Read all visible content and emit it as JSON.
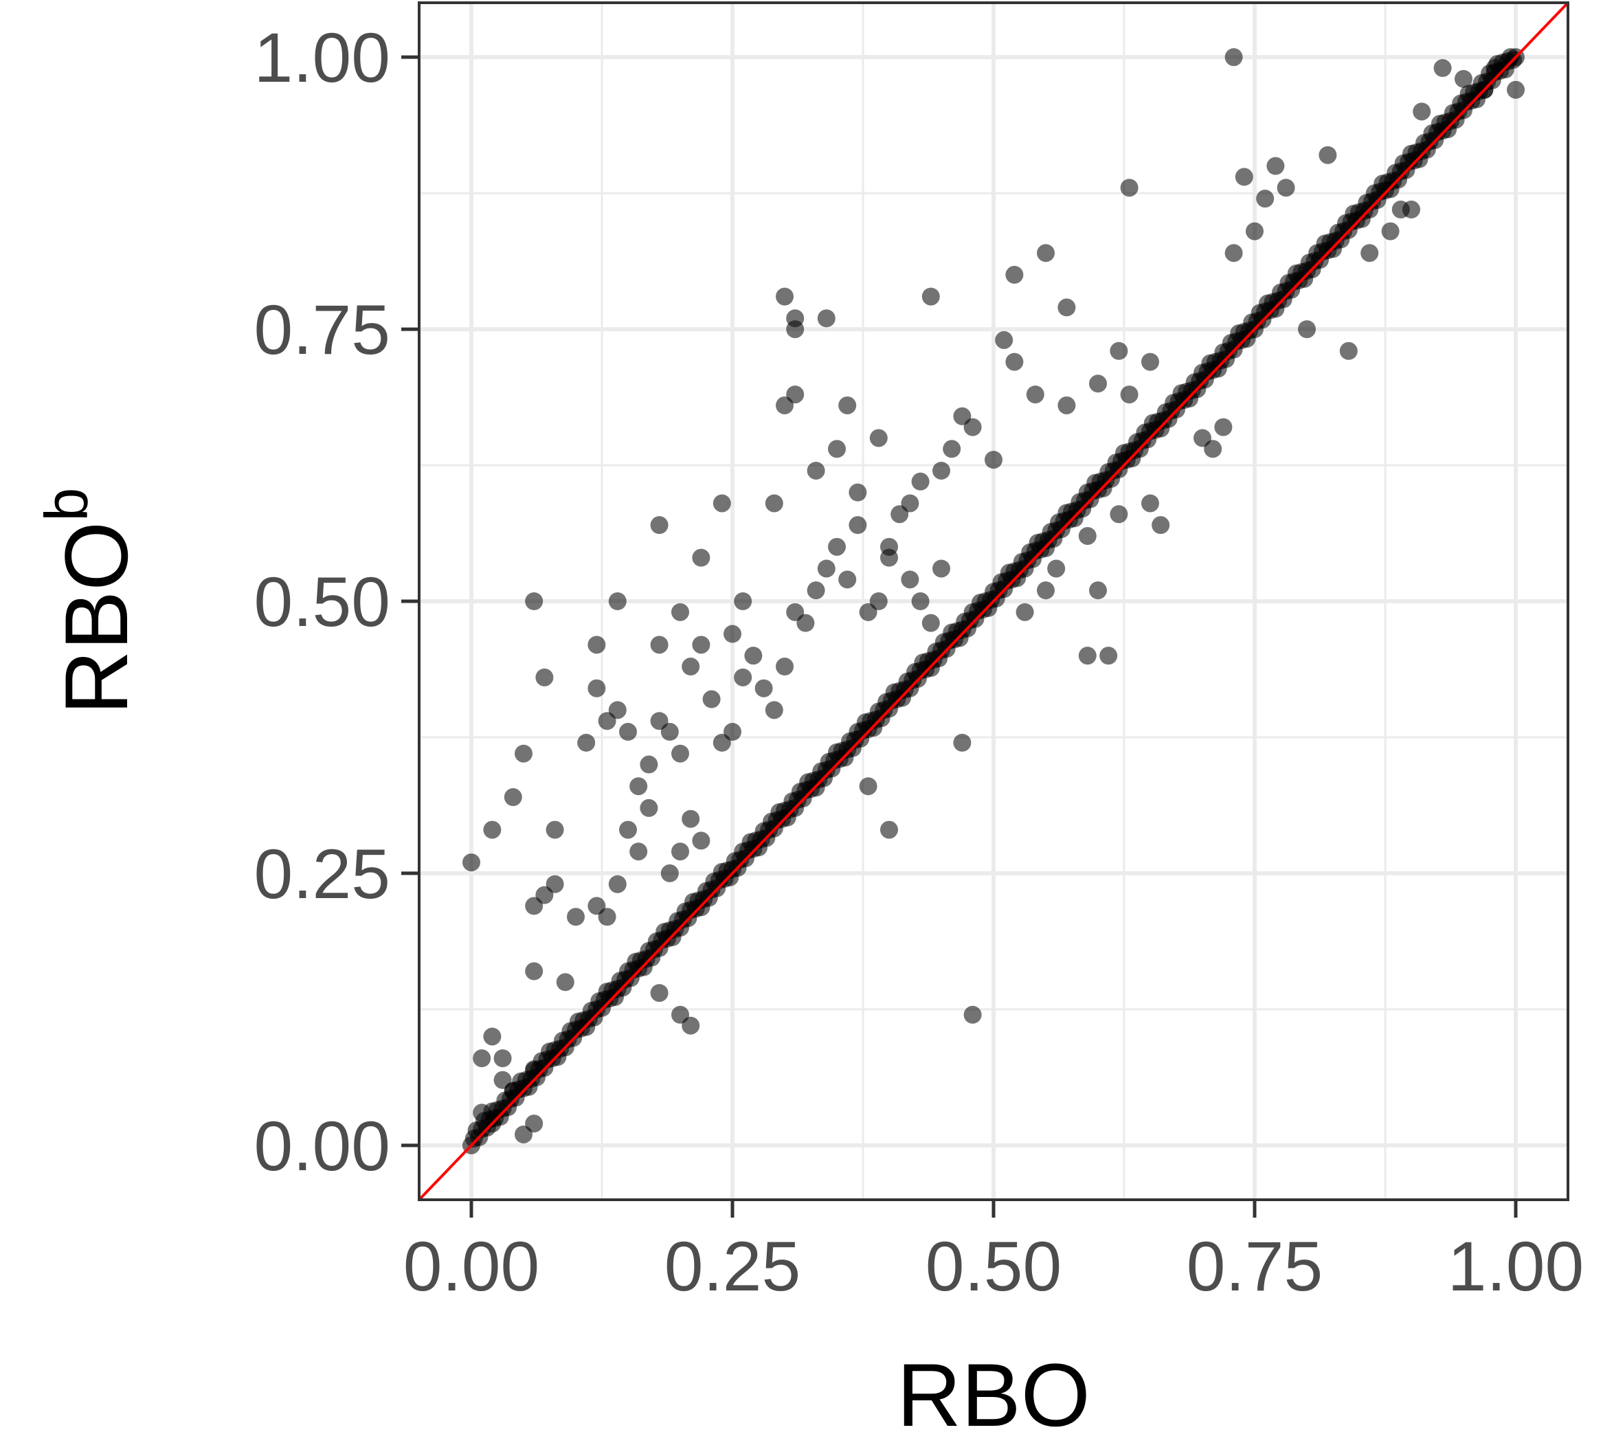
{
  "chart_data": {
    "type": "scatter",
    "title": "",
    "xlabel": "RBO",
    "ylabel": "RBO",
    "ylabel_superscript": "b",
    "xlim": [
      -0.05,
      1.05
    ],
    "ylim": [
      -0.05,
      1.05
    ],
    "x_ticks": [
      0.0,
      0.25,
      0.5,
      0.75,
      1.0
    ],
    "x_tick_labels": [
      "0.00",
      "0.25",
      "0.50",
      "0.75",
      "1.00"
    ],
    "y_ticks": [
      0.0,
      0.25,
      0.5,
      0.75,
      1.0
    ],
    "y_tick_labels": [
      "0.00",
      "0.25",
      "0.50",
      "0.75",
      "1.00"
    ],
    "grid": true,
    "legend": "none",
    "reference_line": {
      "slope": 1,
      "intercept": 0,
      "color": "#ff0000"
    },
    "point_color": "#000000",
    "point_opacity": 0.55,
    "points": [
      [
        0.0,
        0.26
      ],
      [
        0.06,
        0.5
      ],
      [
        0.07,
        0.43
      ],
      [
        0.12,
        0.46
      ],
      [
        0.14,
        0.5
      ],
      [
        0.18,
        0.57
      ],
      [
        0.24,
        0.59
      ],
      [
        0.26,
        0.5
      ],
      [
        0.29,
        0.59
      ],
      [
        0.3,
        0.78
      ],
      [
        0.31,
        0.76
      ],
      [
        0.31,
        0.75
      ],
      [
        0.34,
        0.76
      ],
      [
        0.44,
        0.78
      ],
      [
        0.52,
        0.8
      ],
      [
        0.55,
        0.82
      ],
      [
        0.57,
        0.77
      ],
      [
        0.36,
        0.68
      ],
      [
        0.31,
        0.69
      ],
      [
        0.3,
        0.68
      ],
      [
        0.39,
        0.65
      ],
      [
        0.43,
        0.61
      ],
      [
        0.46,
        0.64
      ],
      [
        0.47,
        0.67
      ],
      [
        0.48,
        0.66
      ],
      [
        0.5,
        0.63
      ],
      [
        0.51,
        0.74
      ],
      [
        0.52,
        0.72
      ],
      [
        0.54,
        0.69
      ],
      [
        0.57,
        0.68
      ],
      [
        0.6,
        0.7
      ],
      [
        0.62,
        0.73
      ],
      [
        0.63,
        0.69
      ],
      [
        0.65,
        0.72
      ],
      [
        0.63,
        0.88
      ],
      [
        0.73,
        0.82
      ],
      [
        0.73,
        1.0
      ],
      [
        0.74,
        0.89
      ],
      [
        0.77,
        0.9
      ],
      [
        0.82,
        0.91
      ],
      [
        0.78,
        0.88
      ],
      [
        0.76,
        0.87
      ],
      [
        0.75,
        0.84
      ],
      [
        0.89,
        0.86
      ],
      [
        0.84,
        0.73
      ],
      [
        0.59,
        0.45
      ],
      [
        0.61,
        0.45
      ],
      [
        0.6,
        0.51
      ],
      [
        0.48,
        0.12
      ],
      [
        0.4,
        0.29
      ],
      [
        0.47,
        0.37
      ],
      [
        0.38,
        0.33
      ],
      [
        0.2,
        0.12
      ],
      [
        0.21,
        0.11
      ],
      [
        0.18,
        0.14
      ],
      [
        0.09,
        0.15
      ],
      [
        0.02,
        0.29
      ],
      [
        0.04,
        0.32
      ],
      [
        0.05,
        0.36
      ],
      [
        0.08,
        0.29
      ],
      [
        0.07,
        0.23
      ],
      [
        0.08,
        0.24
      ],
      [
        0.06,
        0.22
      ],
      [
        0.06,
        0.16
      ],
      [
        0.1,
        0.21
      ],
      [
        0.11,
        0.37
      ],
      [
        0.12,
        0.42
      ],
      [
        0.13,
        0.39
      ],
      [
        0.14,
        0.4
      ],
      [
        0.15,
        0.38
      ],
      [
        0.16,
        0.33
      ],
      [
        0.17,
        0.35
      ],
      [
        0.18,
        0.39
      ],
      [
        0.19,
        0.38
      ],
      [
        0.2,
        0.36
      ],
      [
        0.21,
        0.44
      ],
      [
        0.22,
        0.46
      ],
      [
        0.23,
        0.41
      ],
      [
        0.24,
        0.37
      ],
      [
        0.25,
        0.38
      ],
      [
        0.26,
        0.43
      ],
      [
        0.27,
        0.45
      ],
      [
        0.28,
        0.42
      ],
      [
        0.29,
        0.4
      ],
      [
        0.3,
        0.44
      ],
      [
        0.31,
        0.49
      ],
      [
        0.32,
        0.48
      ],
      [
        0.33,
        0.51
      ],
      [
        0.34,
        0.53
      ],
      [
        0.35,
        0.55
      ],
      [
        0.36,
        0.52
      ],
      [
        0.37,
        0.57
      ],
      [
        0.38,
        0.49
      ],
      [
        0.39,
        0.5
      ],
      [
        0.4,
        0.54
      ],
      [
        0.41,
        0.58
      ],
      [
        0.42,
        0.52
      ],
      [
        0.43,
        0.5
      ],
      [
        0.44,
        0.48
      ],
      [
        0.45,
        0.53
      ],
      [
        0.15,
        0.29
      ],
      [
        0.16,
        0.27
      ],
      [
        0.17,
        0.31
      ],
      [
        0.19,
        0.25
      ],
      [
        0.2,
        0.27
      ],
      [
        0.21,
        0.3
      ],
      [
        0.22,
        0.28
      ],
      [
        0.14,
        0.24
      ],
      [
        0.13,
        0.21
      ],
      [
        0.12,
        0.22
      ],
      [
        0.01,
        0.08
      ],
      [
        0.02,
        0.1
      ],
      [
        0.03,
        0.06
      ],
      [
        0.04,
        0.05
      ],
      [
        0.05,
        0.01
      ],
      [
        0.06,
        0.02
      ],
      [
        0.01,
        0.03
      ],
      [
        0.02,
        0.02
      ],
      [
        0.03,
        0.08
      ],
      [
        0.06,
        0.07
      ],
      [
        0.25,
        0.47
      ],
      [
        0.22,
        0.54
      ],
      [
        0.2,
        0.49
      ],
      [
        0.18,
        0.46
      ],
      [
        0.33,
        0.62
      ],
      [
        0.35,
        0.64
      ],
      [
        0.37,
        0.6
      ],
      [
        0.4,
        0.55
      ],
      [
        0.42,
        0.59
      ],
      [
        0.45,
        0.62
      ],
      [
        0.66,
        0.57
      ],
      [
        0.65,
        0.59
      ],
      [
        0.7,
        0.65
      ],
      [
        0.71,
        0.64
      ],
      [
        0.72,
        0.66
      ],
      [
        0.8,
        0.75
      ],
      [
        0.86,
        0.82
      ],
      [
        0.88,
        0.84
      ],
      [
        0.9,
        0.86
      ],
      [
        0.95,
        0.98
      ],
      [
        0.93,
        0.99
      ],
      [
        0.97,
        0.97
      ],
      [
        0.98,
        0.99
      ],
      [
        1.0,
        0.97
      ],
      [
        0.91,
        0.95
      ],
      [
        0.59,
        0.56
      ],
      [
        0.62,
        0.58
      ],
      [
        0.56,
        0.53
      ],
      [
        0.53,
        0.49
      ],
      [
        0.55,
        0.51
      ]
    ]
  }
}
